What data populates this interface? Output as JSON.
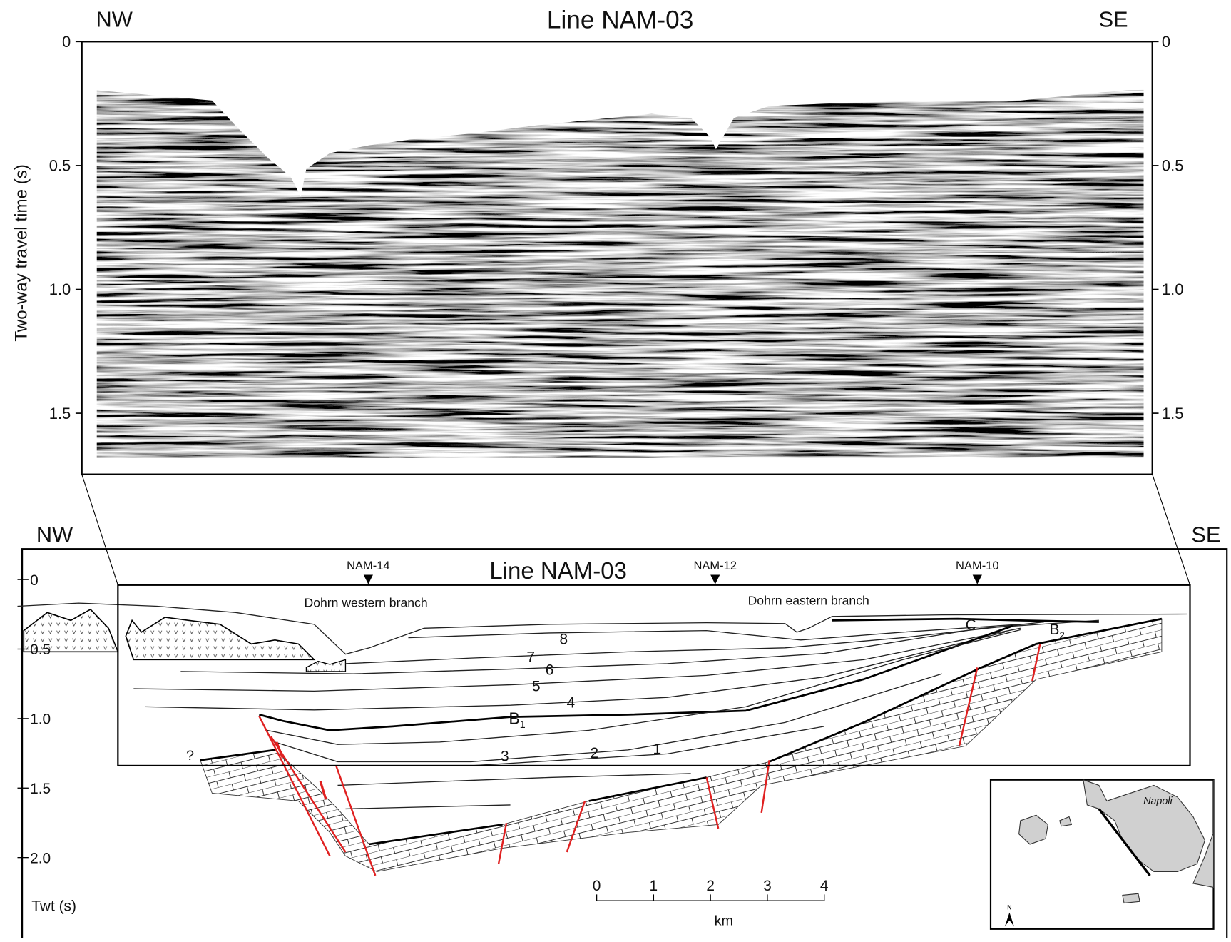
{
  "top_panel": {
    "title": "Line NAM-03",
    "left_label": "NW",
    "right_label": "SE",
    "y_axis_label": "Two-way travel time (s)",
    "yticks": [
      0,
      0.5,
      {
        "value": 1,
        "label": "1.0"
      },
      1.5
    ]
  },
  "bottom_panel": {
    "title": "Line NAM-03",
    "left_label": "NW",
    "right_label": "SE",
    "y_axis_label": "Twt (s)",
    "yticks": [
      0,
      0.5,
      {
        "value": 1,
        "label": "1.0"
      },
      1.5,
      {
        "value": 2,
        "label": "2.0"
      }
    ],
    "wells": [
      "NAM-14",
      "NAM-12",
      "NAM-10"
    ],
    "branches": [
      "Dohrn western branch",
      "Dohrn eastern branch"
    ],
    "units": [
      "1",
      "2",
      "3",
      "4",
      "5",
      "6",
      "7",
      "8"
    ],
    "horizons": {
      "b1": "B",
      "b1_sub": "1",
      "b2": "B",
      "b2_sub": "2",
      "c": "C"
    },
    "uncertain": "?",
    "scale_bar": {
      "ticks": [
        0,
        1,
        2,
        3,
        4
      ],
      "unit": "km"
    },
    "inset": {
      "place": "Napoli",
      "north": "N"
    }
  }
}
